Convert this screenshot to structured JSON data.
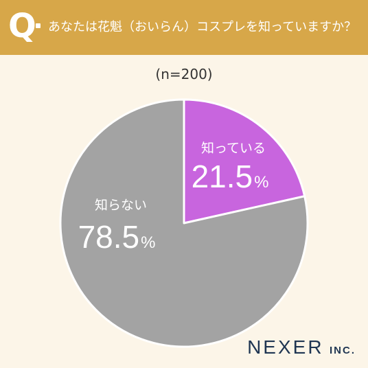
{
  "header": {
    "q": "Q",
    "question": "あなたは花魁（おいらん）コスプレを知っていますか？"
  },
  "brand": {
    "name": "NEXER",
    "suffix": "INC."
  },
  "colors": {
    "header_bg": "#d7a749",
    "know": "#c865de",
    "dont_know": "#a3a3a3",
    "page_bg": "#fcf5e8"
  },
  "chart_data": {
    "type": "pie",
    "title": "",
    "n_label": "(n=200)",
    "slices": [
      {
        "label": "知っている",
        "value": 21.5,
        "display": "21.5",
        "unit": "%",
        "color": "#c865de"
      },
      {
        "label": "知らない",
        "value": 78.5,
        "display": "78.5",
        "unit": "%",
        "color": "#a3a3a3"
      }
    ]
  }
}
